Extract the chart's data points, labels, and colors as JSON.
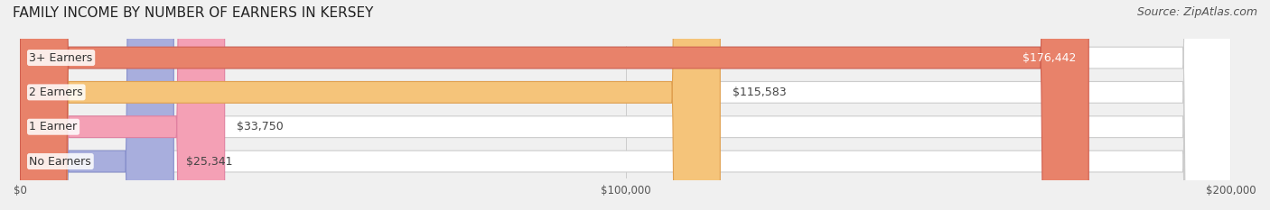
{
  "title": "FAMILY INCOME BY NUMBER OF EARNERS IN KERSEY",
  "source": "Source: ZipAtlas.com",
  "categories": [
    "No Earners",
    "1 Earner",
    "2 Earners",
    "3+ Earners"
  ],
  "values": [
    25341,
    33750,
    115583,
    176442
  ],
  "labels": [
    "$25,341",
    "$33,750",
    "$115,583",
    "$176,442"
  ],
  "bar_colors": [
    "#a8aedd",
    "#f4a0b5",
    "#f5c47a",
    "#e8826a"
  ],
  "bar_edge_colors": [
    "#8890cc",
    "#e080a0",
    "#e0a050",
    "#d06050"
  ],
  "background_color": "#f0f0f0",
  "bar_bg_color": "#e8e8e8",
  "xlim": [
    0,
    200000
  ],
  "xticks": [
    0,
    100000,
    200000
  ],
  "xticklabels": [
    "$0",
    "$100,000",
    "$200,000"
  ],
  "title_fontsize": 11,
  "source_fontsize": 9,
  "label_fontsize": 9,
  "category_fontsize": 9
}
